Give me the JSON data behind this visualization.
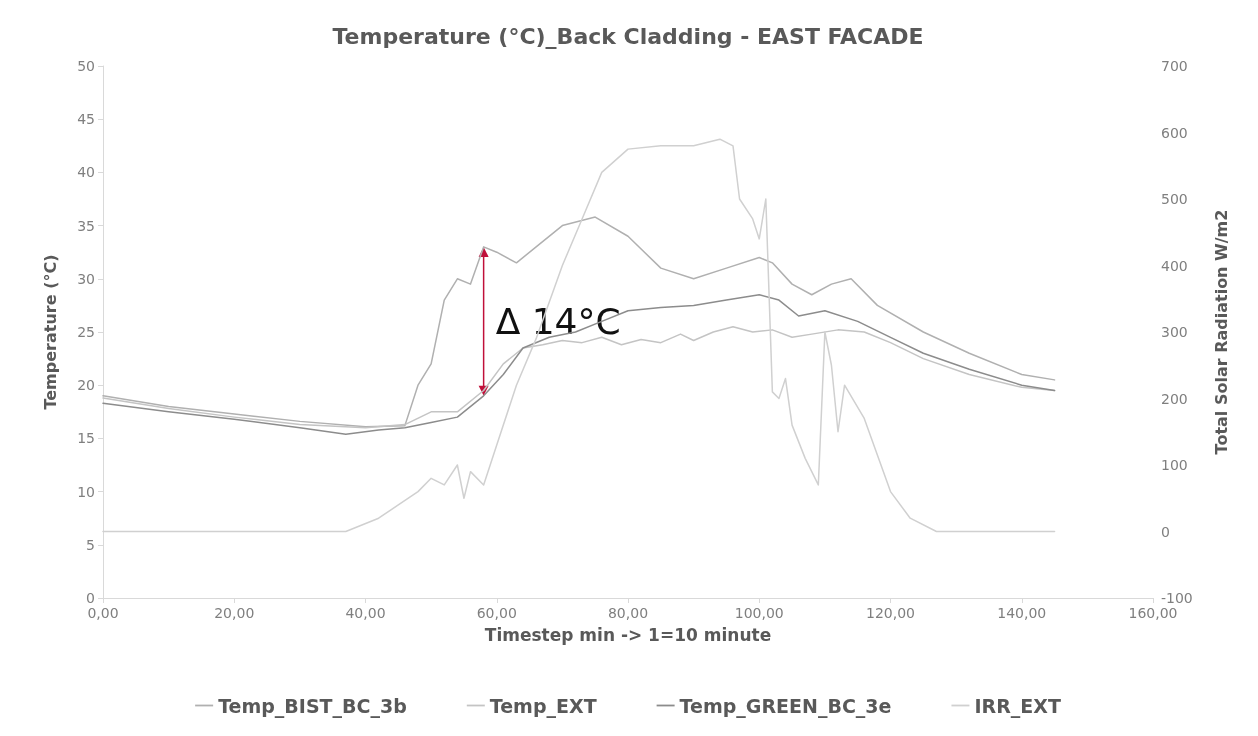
{
  "chart_data": {
    "type": "line",
    "title": "Temperature (°C)_Back Cladding - EAST FACADE",
    "xlabel": "Timestep min -> 1=10 minute",
    "ylabel": "Temperature (°C)",
    "y2label": "Total Solar Radiation W/m2",
    "xlim": [
      0,
      160
    ],
    "xticks": [
      {
        "value": 0,
        "label": "0,00"
      },
      {
        "value": 20,
        "label": "20,00"
      },
      {
        "value": 40,
        "label": "40,00"
      },
      {
        "value": 60,
        "label": "60,00"
      },
      {
        "value": 80,
        "label": "80,00"
      },
      {
        "value": 100,
        "label": "100,00"
      },
      {
        "value": 120,
        "label": "120,00"
      },
      {
        "value": 140,
        "label": "140,00"
      },
      {
        "value": 160,
        "label": "160,00"
      }
    ],
    "ylim": [
      0,
      50
    ],
    "yticks": [
      0,
      5,
      10,
      15,
      20,
      25,
      30,
      35,
      40,
      45,
      50
    ],
    "y2lim": [
      -100,
      700
    ],
    "y2ticks": [
      -100,
      0,
      100,
      200,
      300,
      400,
      500,
      600,
      700
    ],
    "legend": "bottom",
    "marker": "none",
    "line_style": "solid",
    "annotations": [
      "Δ 14°C"
    ],
    "series": [
      {
        "name": "Temp_BIST_BC_3b",
        "color": "#b0b0b0",
        "x": [
          0,
          10,
          20,
          30,
          40,
          46,
          48,
          50,
          52,
          54,
          56,
          58,
          60,
          63,
          66,
          70,
          75,
          80,
          85,
          90,
          95,
          100,
          102,
          105,
          108,
          111,
          114,
          118,
          125,
          132,
          140,
          145
        ],
        "values": [
          19,
          18,
          17.3,
          16.6,
          16.1,
          16.2,
          20,
          22,
          28,
          30,
          29.5,
          33,
          32.5,
          31.5,
          33,
          35,
          35.8,
          34,
          31,
          30,
          31,
          32,
          31.5,
          29.5,
          28.5,
          29.5,
          30,
          27.5,
          25,
          23,
          21,
          20.5
        ]
      },
      {
        "name": "Temp_EXT",
        "color": "#c4c4c4",
        "x": [
          0,
          10,
          20,
          30,
          40,
          46,
          50,
          54,
          58,
          61,
          64,
          67,
          70,
          73,
          76,
          79,
          82,
          85,
          88,
          90,
          93,
          96,
          99,
          102,
          105,
          108,
          112,
          116,
          120,
          125,
          132,
          140,
          145
        ],
        "values": [
          18.8,
          17.8,
          17,
          16.3,
          16,
          16.3,
          17.5,
          17.5,
          19.5,
          22,
          23.5,
          23.8,
          24.2,
          24,
          24.5,
          23.8,
          24.3,
          24,
          24.8,
          24.2,
          25,
          25.5,
          25,
          25.2,
          24.5,
          24.8,
          25.2,
          25,
          24,
          22.5,
          21,
          19.8,
          19.5
        ]
      },
      {
        "name": "Temp_GREEN_BC_3e",
        "color": "#8c8c8c",
        "x": [
          0,
          10,
          20,
          30,
          37,
          42,
          46,
          50,
          54,
          58,
          61,
          64,
          68,
          72,
          76,
          80,
          85,
          90,
          95,
          100,
          103,
          106,
          110,
          115,
          120,
          125,
          132,
          140,
          145
        ],
        "values": [
          18.3,
          17.5,
          16.8,
          16,
          15.4,
          15.8,
          16,
          16.5,
          17,
          19,
          21,
          23.5,
          24.5,
          25,
          26,
          27,
          27.3,
          27.5,
          28,
          28.5,
          28,
          26.5,
          27,
          26,
          24.5,
          23,
          21.5,
          20,
          19.5
        ]
      },
      {
        "name": "IRR_EXT",
        "color": "#d0d0d0",
        "axis": "y2",
        "x": [
          0,
          10,
          20,
          30,
          37,
          42,
          45,
          48,
          50,
          52,
          54,
          55,
          56,
          58,
          60,
          63,
          66,
          70,
          73,
          76,
          80,
          85,
          90,
          94,
          96,
          97,
          99,
          100,
          101,
          102,
          103,
          104,
          105,
          107,
          109,
          110,
          111,
          112,
          113,
          116,
          120,
          123,
          127,
          135,
          145
        ],
        "values": [
          0,
          0,
          0,
          0,
          0,
          20,
          40,
          60,
          80,
          70,
          100,
          50,
          90,
          70,
          130,
          220,
          290,
          400,
          470,
          540,
          575,
          580,
          580,
          590,
          580,
          500,
          470,
          440,
          500,
          210,
          200,
          230,
          160,
          110,
          70,
          300,
          250,
          150,
          220,
          170,
          60,
          20,
          0,
          0,
          0
        ]
      }
    ]
  }
}
